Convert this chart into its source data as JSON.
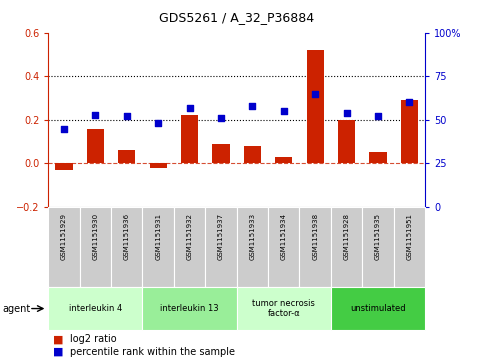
{
  "title": "GDS5261 / A_32_P36884",
  "samples": [
    "GSM1151929",
    "GSM1151930",
    "GSM1151936",
    "GSM1151931",
    "GSM1151932",
    "GSM1151937",
    "GSM1151933",
    "GSM1151934",
    "GSM1151938",
    "GSM1151928",
    "GSM1151935",
    "GSM1151951"
  ],
  "log2_ratio": [
    -0.03,
    0.16,
    0.06,
    -0.02,
    0.22,
    0.09,
    0.08,
    0.03,
    0.52,
    0.2,
    0.05,
    0.29
  ],
  "percentile_rank": [
    45,
    53,
    52,
    48,
    57,
    51,
    58,
    55,
    65,
    54,
    52,
    60
  ],
  "agents": [
    {
      "label": "interleukin 4",
      "start": 0,
      "end": 3,
      "color": "#ccffcc"
    },
    {
      "label": "interleukin 13",
      "start": 3,
      "end": 6,
      "color": "#99ee99"
    },
    {
      "label": "tumor necrosis\nfactor-α",
      "start": 6,
      "end": 9,
      "color": "#ccffcc"
    },
    {
      "label": "unstimulated",
      "start": 9,
      "end": 12,
      "color": "#44cc44"
    }
  ],
  "bar_color": "#cc2200",
  "dot_color": "#0000cc",
  "ylim_left": [
    -0.2,
    0.6
  ],
  "ylim_right": [
    0,
    100
  ],
  "yticks_left": [
    -0.2,
    0.0,
    0.2,
    0.4,
    0.6
  ],
  "yticks_right": [
    0,
    25,
    50,
    75,
    100
  ],
  "hlines": [
    0.2,
    0.4
  ],
  "sample_box_color": "#cccccc",
  "bg_color": "#ffffff",
  "plot_bg_color": "#ffffff"
}
